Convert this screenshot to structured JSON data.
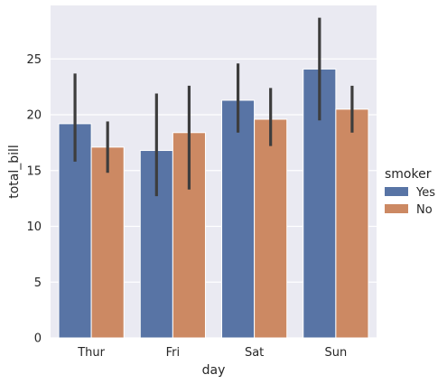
{
  "chart_data": {
    "type": "bar",
    "title": "",
    "xlabel": "day",
    "ylabel": "total_bill",
    "categories": [
      "Thur",
      "Fri",
      "Sat",
      "Sun"
    ],
    "ylim": [
      0,
      29.8
    ],
    "yticks": [
      0,
      5,
      10,
      15,
      20,
      25
    ],
    "grid": true,
    "legend": {
      "title": "smoker",
      "placement": "right"
    },
    "series": [
      {
        "name": "Yes",
        "color": "#5874a5",
        "values": [
          19.2,
          16.8,
          21.3,
          24.1
        ],
        "ci_low": [
          15.8,
          12.7,
          18.4,
          19.5
        ],
        "ci_high": [
          23.7,
          21.9,
          24.6,
          28.7
        ]
      },
      {
        "name": "No",
        "color": "#cc8963",
        "values": [
          17.1,
          18.4,
          19.6,
          20.5
        ],
        "ci_low": [
          14.8,
          13.3,
          17.2,
          18.4
        ],
        "ci_high": [
          19.4,
          22.6,
          22.4,
          22.6
        ]
      }
    ]
  }
}
